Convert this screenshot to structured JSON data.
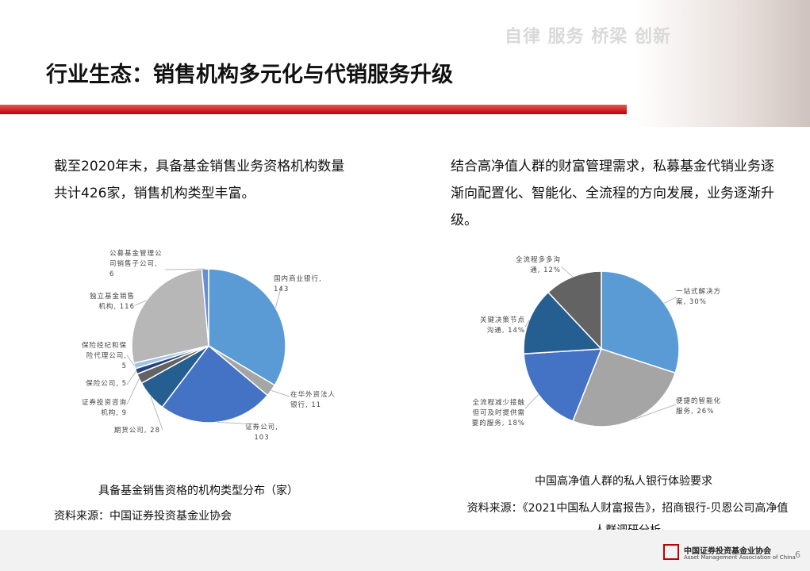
{
  "header": {
    "slogan": "自律 服务 桥梁 创新",
    "title": "行业生态：销售机构多元化与代销服务升级"
  },
  "left_text": "截至2020年末，具备基金销售业务资格机构数量共计426家，销售机构类型丰富。",
  "right_text": "结合高净值人群的财富管理需求，私募基金代销业务逐渐向配置化、智能化、全流程的方向发展，业务逐渐升级。",
  "chart_data": [
    {
      "type": "pie",
      "title": "具备基金销售资格的机构类型分布（家）",
      "source": "资料来源：中国证券投资基金业协会",
      "values": [
        143,
        11,
        103,
        28,
        9,
        5,
        5,
        116,
        6
      ],
      "value_labels": [
        "国内商业银行, 143",
        "在华外资法人银行, 11",
        "证券公司, 103",
        "期货公司, 28",
        "证券投资咨询机构, 9",
        "保险公司, 5",
        "保险经纪和保险代理公司, 5",
        "独立基金销售机构, 116",
        "公募基金管理公司销售子公司, 6"
      ],
      "colors": [
        "#5b9bd5",
        "#a5a5a5",
        "#4472c4",
        "#255e91",
        "#636363",
        "#264478",
        "#9dc3e6",
        "#b7b7b7",
        "#698ed0"
      ]
    },
    {
      "type": "pie",
      "title": "中国高净值人群的私人银行体验要求",
      "source": "资料来源：《2021中国私人财富报告》，招商银行-贝恩公司高净值人群调研分析",
      "values": [
        30,
        26,
        18,
        14,
        12
      ],
      "value_labels": [
        "一站式解决方案, 30%",
        "便捷的智能化服务, 26%",
        "全流程减少接触但可及时提供需要的服务, 18%",
        "关键决策节点沟通, 14%",
        "全流程多多沟通, 12%"
      ],
      "colors": [
        "#5b9bd5",
        "#a5a5a5",
        "#4472c4",
        "#255e91",
        "#636363"
      ]
    }
  ],
  "footer": {
    "org_cn": "中国证券投资基金业协会",
    "org_en": "Asset Management Association of China",
    "page": "6"
  }
}
